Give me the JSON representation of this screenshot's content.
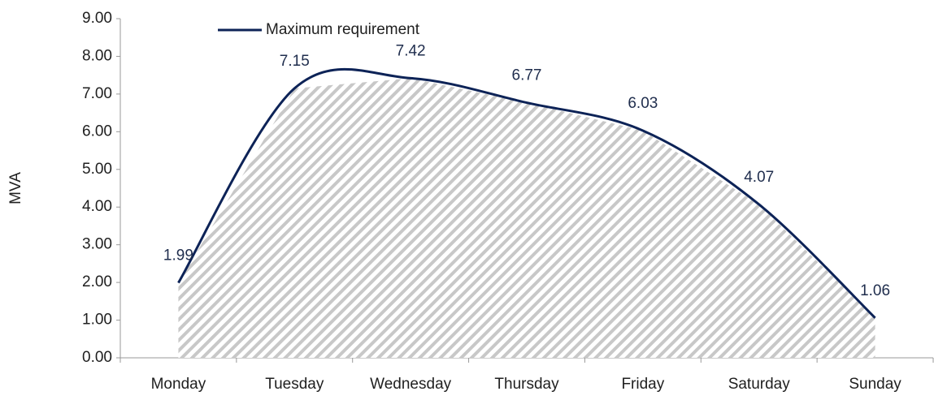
{
  "chart_data": {
    "type": "line",
    "y_label": "MVA",
    "categories": [
      "Monday",
      "Tuesday",
      "Wednesday",
      "Thursday",
      "Friday",
      "Saturday",
      "Sunday"
    ],
    "series": [
      {
        "name": "Maximum requirement",
        "color": "#0d2357",
        "values": [
          1.99,
          7.15,
          7.42,
          6.77,
          6.03,
          4.07,
          1.06
        ]
      }
    ],
    "ylim": [
      0,
      9
    ],
    "yticks": [
      {
        "value": 0,
        "label": "0.00"
      },
      {
        "value": 1,
        "label": "1.00"
      },
      {
        "value": 2,
        "label": "2.00"
      },
      {
        "value": 3,
        "label": "3.00"
      },
      {
        "value": 4,
        "label": "4.00"
      },
      {
        "value": 5,
        "label": "5.00"
      },
      {
        "value": 6,
        "label": "6.00"
      },
      {
        "value": 7,
        "label": "7.00"
      },
      {
        "value": 8,
        "label": "8.00"
      },
      {
        "value": 9,
        "label": "9.00"
      }
    ],
    "smooth": true,
    "area_fill": "hatched",
    "legend": "top-left"
  }
}
